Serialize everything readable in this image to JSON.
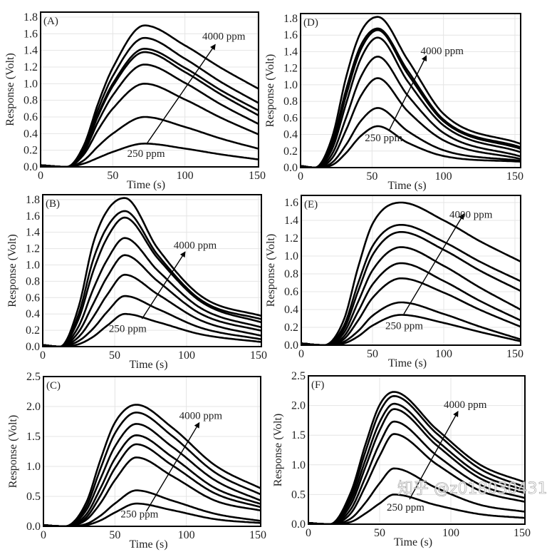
{
  "chart_data": [
    {
      "type": "line",
      "panel_label": "(A)",
      "xlabel": "Time (s)",
      "ylabel": "Response (Volt)",
      "xlim": [
        0,
        151
      ],
      "ylim": [
        0,
        1.86
      ],
      "xticks": [
        0,
        50,
        100,
        150
      ],
      "yticks": [
        0.0,
        0.2,
        0.4,
        0.6,
        0.8,
        1.0,
        1.2,
        1.4,
        1.6,
        1.8
      ],
      "ytick_decimals": 1,
      "grid": true,
      "x": [
        0,
        18,
        30,
        40,
        50,
        72,
        100,
        125,
        155
      ],
      "series": [
        {
          "values": [
            0.02,
            0,
            0.04,
            0.11,
            0.18,
            0.28,
            0.22,
            0.15,
            0.08
          ]
        },
        {
          "values": [
            0.02,
            0,
            0.08,
            0.25,
            0.4,
            0.6,
            0.48,
            0.34,
            0.2
          ]
        },
        {
          "values": [
            0.02,
            0,
            0.15,
            0.45,
            0.7,
            1.0,
            0.81,
            0.59,
            0.36
          ]
        },
        {
          "values": [
            0.02,
            0,
            0.18,
            0.55,
            0.86,
            1.23,
            1.01,
            0.75,
            0.48
          ]
        },
        {
          "values": [
            0.02,
            0,
            0.21,
            0.62,
            0.97,
            1.38,
            1.14,
            0.87,
            0.58
          ]
        },
        {
          "values": [
            0.02,
            0,
            0.21,
            0.64,
            1.0,
            1.42,
            1.19,
            0.92,
            0.64
          ]
        },
        {
          "values": [
            0.02,
            0,
            0.23,
            0.7,
            1.09,
            1.55,
            1.3,
            1.02,
            0.73
          ]
        },
        {
          "values": [
            0.02,
            0,
            0.26,
            0.77,
            1.19,
            1.7,
            1.46,
            1.19,
            0.9
          ]
        }
      ],
      "annotations": {
        "high": "4000 ppm",
        "low": "250 ppm",
        "arrow_from": [
          74,
          0.29
        ],
        "arrow_to": [
          121,
          1.47
        ],
        "high_at": [
          112,
          1.53
        ],
        "low_at": [
          60,
          0.12
        ]
      }
    },
    {
      "type": "line",
      "panel_label": "(B)",
      "xlabel": "Time (s)",
      "ylabel": "Response (Volt)",
      "xlim": [
        0,
        152
      ],
      "ylim": [
        0,
        1.86
      ],
      "xticks": [
        0,
        50,
        100,
        150
      ],
      "yticks": [
        0.0,
        0.2,
        0.4,
        0.6,
        0.8,
        1.0,
        1.2,
        1.4,
        1.6,
        1.8
      ],
      "ytick_decimals": 1,
      "grid": true,
      "x": [
        0,
        12,
        25,
        35,
        45,
        57,
        80,
        110,
        155
      ],
      "series": [
        {
          "values": [
            0.02,
            0,
            0.03,
            0.12,
            0.26,
            0.4,
            0.3,
            0.15,
            0.05
          ]
        },
        {
          "values": [
            0.02,
            0,
            0.07,
            0.22,
            0.43,
            0.62,
            0.46,
            0.23,
            0.08
          ]
        },
        {
          "values": [
            0.02,
            0,
            0.12,
            0.36,
            0.64,
            0.88,
            0.64,
            0.32,
            0.12
          ]
        },
        {
          "values": [
            0.02,
            0,
            0.18,
            0.52,
            0.86,
            1.12,
            0.8,
            0.4,
            0.18
          ]
        },
        {
          "values": [
            0.02,
            0,
            0.25,
            0.7,
            1.07,
            1.33,
            0.93,
            0.47,
            0.22
          ]
        },
        {
          "values": [
            0.02,
            0,
            0.34,
            0.92,
            1.34,
            1.58,
            1.08,
            0.55,
            0.28
          ]
        },
        {
          "values": [
            0.02,
            0,
            0.4,
            1.06,
            1.47,
            1.66,
            1.12,
            0.57,
            0.32
          ]
        },
        {
          "values": [
            0.02,
            0,
            0.49,
            1.26,
            1.67,
            1.82,
            1.2,
            0.62,
            0.36
          ]
        }
      ],
      "annotations": {
        "high": "4000 ppm",
        "low": "250 ppm",
        "arrow_from": [
          69,
          0.34
        ],
        "arrow_to": [
          99,
          1.16
        ],
        "high_at": [
          91,
          1.2
        ],
        "low_at": [
          46,
          0.18
        ]
      }
    },
    {
      "type": "line",
      "panel_label": "(C)",
      "xlabel": "Time (s)",
      "ylabel": "Response (Volt)",
      "xlim": [
        0,
        152
      ],
      "ylim": [
        0,
        2.5
      ],
      "xticks": [
        0,
        50,
        100,
        150
      ],
      "yticks": [
        0.0,
        0.5,
        1.0,
        1.5,
        2.0,
        2.5
      ],
      "ytick_decimals": 1,
      "grid": true,
      "x": [
        0,
        15,
        30,
        40,
        50,
        65,
        90,
        120,
        155
      ],
      "series": [
        {
          "values": [
            0.02,
            0,
            0.02,
            0.1,
            0.23,
            0.38,
            0.27,
            0.12,
            0.05
          ]
        },
        {
          "values": [
            0.02,
            0,
            0.04,
            0.18,
            0.38,
            0.6,
            0.43,
            0.21,
            0.08
          ]
        },
        {
          "values": [
            0.02,
            0,
            0.11,
            0.39,
            0.77,
            1.15,
            0.84,
            0.43,
            0.25
          ]
        },
        {
          "values": [
            0.02,
            0,
            0.15,
            0.52,
            0.97,
            1.37,
            1.02,
            0.55,
            0.3
          ]
        },
        {
          "values": [
            0.02,
            0,
            0.2,
            0.64,
            1.13,
            1.52,
            1.16,
            0.64,
            0.35
          ]
        },
        {
          "values": [
            0.02,
            0,
            0.27,
            0.8,
            1.33,
            1.71,
            1.33,
            0.77,
            0.4
          ]
        },
        {
          "values": [
            0.02,
            0,
            0.33,
            0.97,
            1.55,
            1.9,
            1.51,
            0.9,
            0.5
          ]
        },
        {
          "values": [
            0.02,
            0,
            0.4,
            1.12,
            1.73,
            2.03,
            1.65,
            1.02,
            0.6
          ]
        }
      ],
      "annotations": {
        "high": "4000 ppm",
        "low": "250 ppm",
        "arrow_from": [
          72,
          0.25
        ],
        "arrow_to": [
          109,
          1.73
        ],
        "high_at": [
          95,
          1.79
        ],
        "low_at": [
          54,
          0.15
        ]
      }
    },
    {
      "type": "line",
      "panel_label": "(D)",
      "xlabel": "Time (s)",
      "ylabel": "Response (Volt)",
      "xlim": [
        0,
        154
      ],
      "ylim": [
        0,
        1.86
      ],
      "xticks": [
        0,
        50,
        100,
        150
      ],
      "yticks": [
        0.0,
        0.2,
        0.4,
        0.6,
        0.8,
        1.0,
        1.2,
        1.4,
        1.6,
        1.8
      ],
      "ytick_decimals": 1,
      "grid": true,
      "x": [
        0,
        10,
        22,
        32,
        42,
        54,
        75,
        100,
        155
      ],
      "series": [
        {
          "values": [
            0.02,
            0,
            0.03,
            0.18,
            0.38,
            0.5,
            0.3,
            0.14,
            0.07
          ]
        },
        {
          "values": [
            0.02,
            0,
            0.06,
            0.28,
            0.56,
            0.72,
            0.44,
            0.21,
            0.08
          ]
        },
        {
          "values": [
            0.02,
            0,
            0.11,
            0.46,
            0.86,
            1.08,
            0.68,
            0.33,
            0.1
          ]
        },
        {
          "values": [
            0.02,
            0,
            0.16,
            0.61,
            1.09,
            1.34,
            0.87,
            0.42,
            0.13
          ]
        },
        {
          "values": [
            0.02,
            0,
            0.22,
            0.78,
            1.31,
            1.57,
            1.04,
            0.51,
            0.18
          ]
        },
        {
          "values": [
            0.02,
            0,
            0.27,
            0.88,
            1.42,
            1.66,
            1.13,
            0.56,
            0.22
          ]
        },
        {
          "values": [
            0.02,
            0,
            0.3,
            0.95,
            1.47,
            1.68,
            1.17,
            0.58,
            0.24
          ]
        },
        {
          "values": [
            0.02,
            0,
            0.36,
            1.1,
            1.63,
            1.82,
            1.3,
            0.65,
            0.28
          ]
        }
      ],
      "annotations": {
        "high": "4000 ppm",
        "low": "250 ppm",
        "arrow_from": [
          62,
          0.45
        ],
        "arrow_to": [
          88,
          1.35
        ],
        "high_at": [
          84,
          1.37
        ],
        "low_at": [
          45,
          0.32
        ]
      }
    },
    {
      "type": "line",
      "panel_label": "(E)",
      "xlabel": "Time (s)",
      "ylabel": "Response (Volt)",
      "xlim": [
        0,
        154
      ],
      "ylim": [
        0,
        1.68
      ],
      "xticks": [
        0,
        50,
        100,
        150
      ],
      "yticks": [
        0.0,
        0.2,
        0.4,
        0.6,
        0.8,
        1.0,
        1.2,
        1.4,
        1.6
      ],
      "ytick_decimals": 1,
      "grid": true,
      "x": [
        0,
        16,
        30,
        40,
        50,
        70,
        100,
        125,
        155
      ],
      "series": [
        {
          "values": [
            0.02,
            0,
            0.02,
            0.1,
            0.22,
            0.34,
            0.25,
            0.15,
            0.04
          ]
        },
        {
          "values": [
            0.02,
            0,
            0.04,
            0.16,
            0.33,
            0.48,
            0.35,
            0.21,
            0.06
          ]
        },
        {
          "values": [
            0.02,
            0,
            0.07,
            0.28,
            0.53,
            0.75,
            0.59,
            0.4,
            0.2
          ]
        },
        {
          "values": [
            0.02,
            0,
            0.1,
            0.38,
            0.68,
            0.92,
            0.72,
            0.5,
            0.27
          ]
        },
        {
          "values": [
            0.02,
            0,
            0.14,
            0.49,
            0.84,
            1.1,
            0.89,
            0.65,
            0.39
          ]
        },
        {
          "values": [
            0.02,
            0,
            0.18,
            0.61,
            1.01,
            1.27,
            1.07,
            0.84,
            0.6
          ]
        },
        {
          "values": [
            0.02,
            0,
            0.22,
            0.7,
            1.11,
            1.35,
            1.16,
            0.94,
            0.71
          ]
        },
        {
          "values": [
            0.02,
            0,
            0.29,
            0.88,
            1.36,
            1.6,
            1.4,
            1.17,
            0.93
          ]
        }
      ],
      "annotations": {
        "high": "4000 ppm",
        "low": "250 ppm",
        "arrow_from": [
          72,
          0.35
        ],
        "arrow_to": [
          114,
          1.47
        ],
        "high_at": [
          104,
          1.43
        ],
        "low_at": [
          59,
          0.18
        ]
      }
    },
    {
      "type": "line",
      "panel_label": "(F)",
      "xlabel": "Time (s)",
      "ylabel": "Response (Volt)",
      "xlim": [
        0,
        152
      ],
      "ylim": [
        0,
        2.5
      ],
      "xticks": [
        0,
        50,
        100,
        150
      ],
      "yticks": [
        0.0,
        0.5,
        1.0,
        1.5,
        2.0,
        2.5
      ],
      "ytick_decimals": 1,
      "grid": true,
      "x": [
        0,
        15,
        30,
        40,
        50,
        60,
        90,
        120,
        155
      ],
      "series": [
        {
          "values": [
            0.02,
            0,
            0.04,
            0.18,
            0.35,
            0.5,
            0.32,
            0.17,
            0.1
          ]
        },
        {
          "values": [
            0.02,
            0,
            0.1,
            0.36,
            0.69,
            0.94,
            0.61,
            0.33,
            0.2
          ]
        },
        {
          "values": [
            0.02,
            0,
            0.19,
            0.64,
            1.15,
            1.52,
            1.01,
            0.57,
            0.36
          ]
        },
        {
          "values": [
            0.02,
            0,
            0.26,
            0.79,
            1.36,
            1.73,
            1.16,
            0.67,
            0.42
          ]
        },
        {
          "values": [
            0.02,
            0,
            0.34,
            0.96,
            1.58,
            1.94,
            1.33,
            0.78,
            0.5
          ]
        },
        {
          "values": [
            0.02,
            0,
            0.41,
            1.08,
            1.72,
            2.03,
            1.41,
            0.85,
            0.55
          ]
        },
        {
          "values": [
            0.02,
            0,
            0.48,
            1.22,
            1.89,
            2.16,
            1.53,
            0.94,
            0.6
          ]
        },
        {
          "values": [
            0.02,
            0,
            0.55,
            1.34,
            2.01,
            2.23,
            1.6,
            1.01,
            0.68
          ]
        }
      ],
      "annotations": {
        "high": "4000 ppm",
        "low": "250 ppm",
        "arrow_from": [
          71,
          0.42
        ],
        "arrow_to": [
          105,
          1.9
        ],
        "high_at": [
          95,
          1.96
        ],
        "low_at": [
          55,
          0.23
        ]
      }
    }
  ],
  "watermark": "知乎 @z018030431",
  "colors": {
    "line": "#000000",
    "grid": "#e4e4e4",
    "frame": "#000000"
  }
}
